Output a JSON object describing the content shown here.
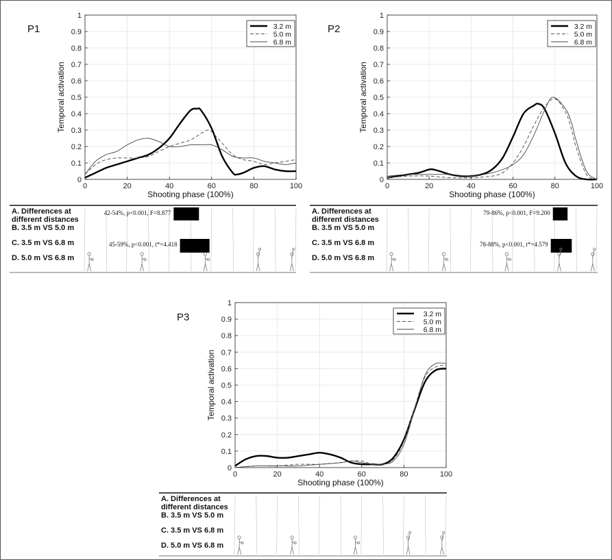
{
  "chart_data": [
    {
      "type": "line",
      "panel_label": "P1",
      "xlabel": "Shooting phase (100%)",
      "ylabel": "Temporal activation",
      "xlim": [
        0,
        100
      ],
      "ylim": [
        0,
        1
      ],
      "xticks": [
        "0",
        "20",
        "40",
        "60",
        "80",
        "100"
      ],
      "yticks": [
        "0",
        "0.1",
        "0.2",
        "0.3",
        "0.4",
        "0.5",
        "0.6",
        "0.7",
        "0.8",
        "0.9",
        "1"
      ],
      "grid": true,
      "legend_position": "top-right",
      "series": [
        {
          "name": "3.2 m",
          "style": "solid-thick",
          "x": [
            0,
            5,
            10,
            15,
            20,
            25,
            30,
            35,
            40,
            45,
            50,
            53,
            55,
            60,
            65,
            70,
            72,
            75,
            80,
            85,
            90,
            95,
            100
          ],
          "y": [
            0.01,
            0.04,
            0.07,
            0.09,
            0.11,
            0.13,
            0.15,
            0.19,
            0.25,
            0.34,
            0.42,
            0.43,
            0.42,
            0.31,
            0.14,
            0.04,
            0.03,
            0.04,
            0.07,
            0.08,
            0.06,
            0.05,
            0.05
          ]
        },
        {
          "name": "5.0 m",
          "style": "dashed",
          "x": [
            0,
            5,
            10,
            15,
            20,
            25,
            30,
            35,
            40,
            45,
            50,
            55,
            58,
            60,
            65,
            70,
            75,
            80,
            85,
            90,
            95,
            100
          ],
          "y": [
            0.03,
            0.09,
            0.12,
            0.13,
            0.13,
            0.13,
            0.14,
            0.17,
            0.2,
            0.22,
            0.24,
            0.28,
            0.3,
            0.29,
            0.22,
            0.15,
            0.12,
            0.11,
            0.09,
            0.1,
            0.11,
            0.12
          ]
        },
        {
          "name": "6.8 m",
          "style": "solid-thin",
          "x": [
            0,
            5,
            10,
            15,
            20,
            25,
            30,
            35,
            40,
            45,
            50,
            55,
            60,
            65,
            70,
            75,
            80,
            85,
            90,
            95,
            100
          ],
          "y": [
            0.03,
            0.11,
            0.15,
            0.17,
            0.21,
            0.24,
            0.25,
            0.23,
            0.2,
            0.2,
            0.21,
            0.21,
            0.21,
            0.18,
            0.14,
            0.13,
            0.13,
            0.11,
            0.1,
            0.09,
            0.1
          ]
        }
      ],
      "spm": {
        "rows": [
          "A. Differences at",
          "different distances",
          "B. 3.5 m VS 5.0 m",
          "C. 3.5 m VS 6.8 m",
          "D. 5.0 m VS 6.8 m"
        ],
        "results": [
          {
            "label": "42-54%, p<0.001, F=8.877",
            "from": 42,
            "to": 54
          },
          {
            "label": "45-59%, p<0.001, t*=4.418",
            "from": 45,
            "to": 59
          }
        ]
      }
    },
    {
      "type": "line",
      "panel_label": "P2",
      "xlabel": "Shooting phase (100%)",
      "ylabel": "Temporal activation",
      "xlim": [
        0,
        100
      ],
      "ylim": [
        0,
        1
      ],
      "xticks": [
        "0",
        "20",
        "40",
        "60",
        "80",
        "100"
      ],
      "yticks": [
        "0",
        "0.1",
        "0.2",
        "0.3",
        "0.4",
        "0.5",
        "0.6",
        "0.7",
        "0.8",
        "0.9",
        "1"
      ],
      "grid": true,
      "legend_position": "top-right",
      "series": [
        {
          "name": "3.2 m",
          "style": "solid-thick",
          "x": [
            0,
            5,
            10,
            15,
            20,
            22,
            25,
            30,
            35,
            40,
            45,
            50,
            55,
            60,
            65,
            70,
            72,
            75,
            80,
            85,
            90,
            95,
            100
          ],
          "y": [
            0.01,
            0.02,
            0.03,
            0.04,
            0.06,
            0.06,
            0.05,
            0.03,
            0.02,
            0.02,
            0.03,
            0.06,
            0.13,
            0.26,
            0.4,
            0.45,
            0.46,
            0.43,
            0.28,
            0.1,
            0.02,
            0.0,
            0.0
          ]
        },
        {
          "name": "5.0 m",
          "style": "dashed",
          "x": [
            0,
            10,
            20,
            30,
            40,
            50,
            55,
            60,
            65,
            70,
            75,
            80,
            85,
            88,
            90,
            95,
            100
          ],
          "y": [
            0.01,
            0.02,
            0.02,
            0.01,
            0.01,
            0.02,
            0.04,
            0.1,
            0.2,
            0.33,
            0.44,
            0.49,
            0.41,
            0.3,
            0.2,
            0.03,
            0.0
          ]
        },
        {
          "name": "6.8 m",
          "style": "solid-thin",
          "x": [
            0,
            10,
            20,
            30,
            40,
            50,
            55,
            60,
            65,
            70,
            75,
            79,
            85,
            88,
            90,
            95,
            100
          ],
          "y": [
            0.02,
            0.03,
            0.03,
            0.03,
            0.02,
            0.04,
            0.06,
            0.09,
            0.15,
            0.27,
            0.42,
            0.5,
            0.43,
            0.34,
            0.24,
            0.05,
            0.0
          ]
        }
      ],
      "spm": {
        "rows": [
          "A. Differences at",
          "different distances",
          "B. 3.5 m VS 5.0 m",
          "C. 3.5 m VS 6.8 m",
          "D. 5.0 m VS 6.8 m"
        ],
        "results": [
          {
            "label": "79-86%, p<0.001, F=9.200",
            "from": 79,
            "to": 86
          },
          {
            "label": "78-88%, p<0.001, t*=4.579",
            "from": 78,
            "to": 88
          }
        ]
      }
    },
    {
      "type": "line",
      "panel_label": "P3",
      "xlabel": "Shooting phase (100%)",
      "ylabel": "Temporal activation",
      "xlim": [
        0,
        100
      ],
      "ylim": [
        0,
        1
      ],
      "xticks": [
        "0",
        "20",
        "40",
        "60",
        "80",
        "100"
      ],
      "yticks": [
        "0",
        "0.1",
        "0.2",
        "0.3",
        "0.4",
        "0.5",
        "0.6",
        "0.7",
        "0.8",
        "0.9",
        "1"
      ],
      "grid": true,
      "legend_position": "top-right",
      "series": [
        {
          "name": "3.2 m",
          "style": "solid-thick",
          "x": [
            0,
            5,
            10,
            15,
            20,
            25,
            30,
            35,
            40,
            45,
            50,
            55,
            60,
            65,
            70,
            75,
            80,
            85,
            90,
            95,
            100
          ],
          "y": [
            0.01,
            0.05,
            0.07,
            0.07,
            0.06,
            0.06,
            0.07,
            0.08,
            0.09,
            0.08,
            0.06,
            0.03,
            0.02,
            0.02,
            0.02,
            0.06,
            0.17,
            0.35,
            0.52,
            0.59,
            0.6
          ]
        },
        {
          "name": "5.0 m",
          "style": "dashed",
          "x": [
            0,
            10,
            20,
            30,
            40,
            50,
            55,
            60,
            65,
            70,
            75,
            80,
            85,
            90,
            95,
            100
          ],
          "y": [
            0.0,
            0.01,
            0.01,
            0.02,
            0.02,
            0.03,
            0.04,
            0.04,
            0.02,
            0.02,
            0.05,
            0.16,
            0.36,
            0.55,
            0.61,
            0.62
          ]
        },
        {
          "name": "6.8 m",
          "style": "solid-thin",
          "x": [
            0,
            10,
            20,
            30,
            40,
            50,
            55,
            60,
            65,
            70,
            75,
            80,
            85,
            90,
            95,
            100
          ],
          "y": [
            0.0,
            0.01,
            0.01,
            0.01,
            0.02,
            0.03,
            0.04,
            0.03,
            0.02,
            0.02,
            0.04,
            0.14,
            0.35,
            0.56,
            0.63,
            0.63
          ]
        }
      ],
      "spm": {
        "rows": [
          "A. Differences at",
          "different distances",
          "B. 3.5 m VS 5.0 m",
          "C. 3.5 m VS 6.8 m",
          "D. 5.0 m VS 6.8 m"
        ],
        "results": []
      }
    }
  ]
}
